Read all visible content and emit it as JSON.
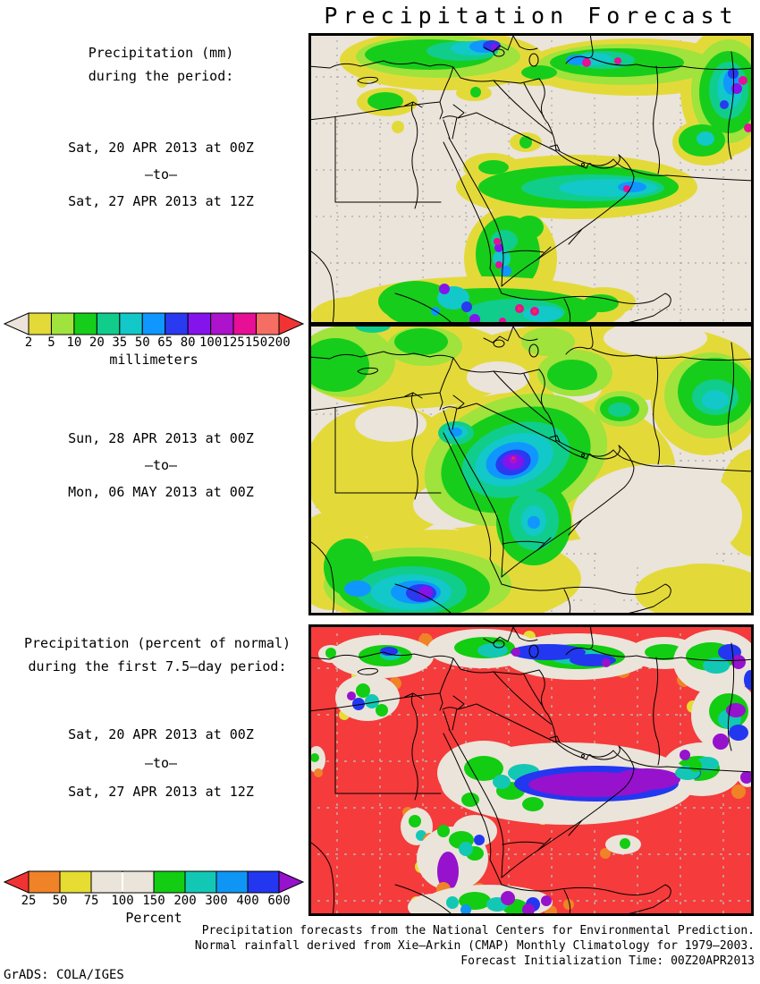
{
  "title": "Precipitation Forecast",
  "block1": {
    "heading_line1": "Precipitation (mm)",
    "heading_line2": "during the period:",
    "date_from": "Sat, 20 APR 2013 at 00Z",
    "to_separator": "–to–",
    "date_to": "Sat, 27 APR 2013 at 12Z"
  },
  "block2": {
    "date_from": "Sun, 28 APR 2013 at 00Z",
    "to_separator": "–to–",
    "date_to": "Mon, 06 MAY 2013 at 00Z"
  },
  "block3": {
    "heading_line1": "Precipitation (percent of normal)",
    "heading_line2": "during the first 7.5–day period:",
    "date_from": "Sat, 20 APR 2013 at 00Z",
    "to_separator": "–to–",
    "date_to": "Sat, 27 APR 2013 at 12Z"
  },
  "legend_mm": {
    "unit_label": "millimeters",
    "tick_labels": [
      "2",
      "5",
      "10",
      "20",
      "35",
      "50",
      "65",
      "80",
      "100",
      "125",
      "150",
      "200"
    ],
    "below_min_color": "#ece4da",
    "above_max_color": "#f23333",
    "segment_colors": [
      "#e3da3a",
      "#9fe33c",
      "#17cd1c",
      "#10cd8c",
      "#12c8c8",
      "#0f97ff",
      "#2a3af0",
      "#8414ec",
      "#ad12cd",
      "#e60f96",
      "#f56e64"
    ],
    "divider_tick_index": null
  },
  "legend_percent": {
    "unit_label": "Percent",
    "tick_labels": [
      "25",
      "50",
      "75",
      "100",
      "150",
      "200",
      "300",
      "400",
      "600"
    ],
    "below_min_color": "#f23333",
    "above_max_color": "#9612cd",
    "segment_colors": [
      "#f08228",
      "#e6dc32",
      "#ebe4da",
      "#ebe4da",
      "#12cd12",
      "#12c8b4",
      "#0f96f5",
      "#2337f0"
    ],
    "divider_tick_index": 3
  },
  "footer": {
    "line1": "Precipitation forecasts from the National Centers for Environmental Prediction.",
    "line2": "Normal rainfall derived from Xie–Arkin (CMAP) Monthly Climatology for 1979–2003.",
    "line3": "Forecast Initialization Time: 00Z20APR2013"
  },
  "credit": "GrADS: COLA/IGES",
  "map_style": {
    "land_color": "#ebe4da",
    "percent_base_color": "#f53b3b",
    "grid_color": "#a8a8a8",
    "grid_color_on_red": "#b9c8c2",
    "border_color": "#000000"
  }
}
